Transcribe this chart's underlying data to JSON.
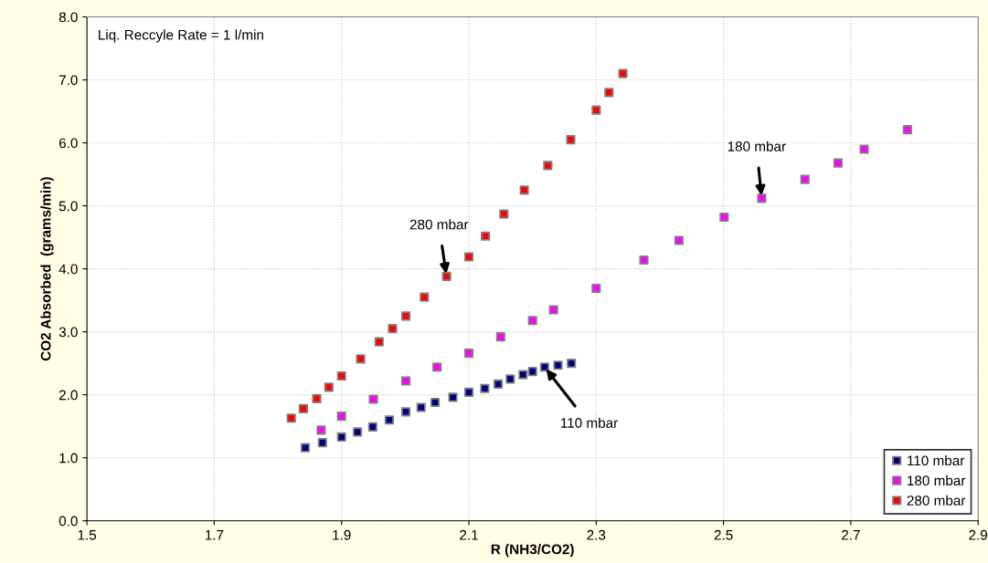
{
  "chart_data": {
    "type": "scatter",
    "xlabel": "R (NH3/CO2)",
    "ylabel": "CO2 Absorbed  (grams/min)",
    "xlim": [
      1.5,
      2.9
    ],
    "xticks": [
      {
        "value": 1.5,
        "label": "1.5"
      },
      {
        "value": 1.7,
        "label": "1.7"
      },
      {
        "value": 1.9,
        "label": "1.9"
      },
      {
        "value": 2.1,
        "label": "2.1"
      },
      {
        "value": 2.3,
        "label": "2.3"
      },
      {
        "value": 2.5,
        "label": "2.5"
      },
      {
        "value": 2.7,
        "label": "2.7"
      },
      {
        "value": 2.9,
        "label": "2.9"
      }
    ],
    "ylim": [
      0,
      8
    ],
    "yticks": [
      {
        "value": 0,
        "label": "0.0"
      },
      {
        "value": 1,
        "label": "1.0"
      },
      {
        "value": 2,
        "label": "2.0"
      },
      {
        "value": 3,
        "label": "3.0"
      },
      {
        "value": 4,
        "label": "4.0"
      },
      {
        "value": 5,
        "label": "5.0"
      },
      {
        "value": 6,
        "label": "6.0"
      },
      {
        "value": 7,
        "label": "7.0"
      },
      {
        "value": 8,
        "label": "8.0"
      }
    ],
    "grid": true,
    "legend": "bottom right",
    "marker": "square",
    "series": [
      {
        "name": "110 mbar",
        "color": "#000080",
        "x": [
          1.843,
          1.87,
          1.9,
          1.925,
          1.949,
          1.975,
          2.001,
          2.025,
          2.047,
          2.075,
          2.1,
          2.125,
          2.146,
          2.165,
          2.185,
          2.2,
          2.219,
          2.24,
          2.261
        ],
        "values": [
          1.16,
          1.24,
          1.33,
          1.41,
          1.49,
          1.6,
          1.73,
          1.8,
          1.88,
          1.96,
          2.04,
          2.1,
          2.17,
          2.25,
          2.32,
          2.37,
          2.44,
          2.47,
          2.5
        ]
      },
      {
        "name": "180 mbar",
        "color": "#ff00ff",
        "x": [
          1.868,
          1.9,
          1.95,
          2.001,
          2.05,
          2.1,
          2.15,
          2.2,
          2.233,
          2.3,
          2.375,
          2.43,
          2.501,
          2.56,
          2.628,
          2.68,
          2.721,
          2.789
        ],
        "values": [
          1.44,
          1.66,
          1.93,
          2.22,
          2.44,
          2.66,
          2.92,
          3.18,
          3.35,
          3.69,
          4.14,
          4.45,
          4.82,
          5.12,
          5.42,
          5.68,
          5.9,
          6.21
        ]
      },
      {
        "name": "280 mbar",
        "color": "#ff0000",
        "x": [
          1.821,
          1.84,
          1.861,
          1.88,
          1.9,
          1.93,
          1.959,
          1.98,
          2.001,
          2.03,
          2.065,
          2.1,
          2.126,
          2.155,
          2.187,
          2.224,
          2.26,
          2.3,
          2.32,
          2.342
        ],
        "values": [
          1.63,
          1.78,
          1.94,
          2.12,
          2.3,
          2.57,
          2.84,
          3.05,
          3.25,
          3.55,
          3.88,
          4.19,
          4.52,
          4.87,
          5.25,
          5.64,
          6.05,
          6.52,
          6.8,
          7.1
        ]
      }
    ],
    "annotations": [
      "Liq. Reccyle Rate = 1 l/min",
      {
        "text": "280 mbar",
        "x": 2.065,
        "y": 3.88
      },
      {
        "text": "180 mbar",
        "x": 2.56,
        "y": 5.12
      },
      {
        "text": "110 mbar",
        "x": 2.219,
        "y": 2.44
      }
    ]
  }
}
